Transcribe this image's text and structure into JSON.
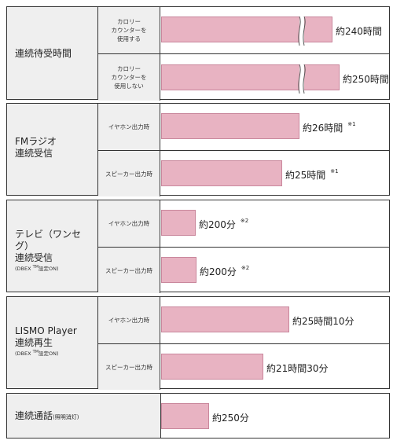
{
  "standby": {
    "label": "連続待受時間",
    "rows": [
      {
        "label_lines": [
          "カロリー",
          "カウンターを",
          "使用する"
        ],
        "value_text": "約240時間"
      },
      {
        "label_lines": [
          "カロリー",
          "カウンターを",
          "使用しない"
        ],
        "value_text": "約250時間"
      }
    ]
  },
  "fm": {
    "label_lines": [
      "FMラジオ",
      "連続受信"
    ],
    "rows": [
      {
        "label": "イヤホン出力時",
        "value_text": "約26時間",
        "note": "※1"
      },
      {
        "label": "スピーカー出力時",
        "value_text": "約25時間",
        "note": "※1"
      }
    ]
  },
  "tv": {
    "label_lines": [
      "テレビ（ワンセグ）",
      "連続受信"
    ],
    "sub_prefix": "(DBEX",
    "sub_tm": "TM",
    "sub_suffix": "設定ON)",
    "rows": [
      {
        "label": "イヤホン出力時",
        "value_text": "約200分",
        "note": "※2"
      },
      {
        "label": "スピーカー出力時",
        "value_text": "約200分",
        "note": "※2"
      }
    ]
  },
  "lismo": {
    "label_lines": [
      "LISMO Player",
      "連続再生"
    ],
    "sub_prefix": "(DBEX",
    "sub_tm": "TM",
    "sub_suffix": "設定ON)",
    "rows": [
      {
        "label": "イヤホン出力時",
        "value_text": "約25時間10分"
      },
      {
        "label": "スピーカー出力時",
        "value_text": "約21時間30分"
      }
    ]
  },
  "talk": {
    "label": "連続通話",
    "sub": "(照明消灯)",
    "value_text": "約250分"
  },
  "colors": {
    "bar_fill": "#e8b3c2",
    "bar_border": "#c9879c",
    "label_bg": "#efefef",
    "border": "#333333"
  }
}
